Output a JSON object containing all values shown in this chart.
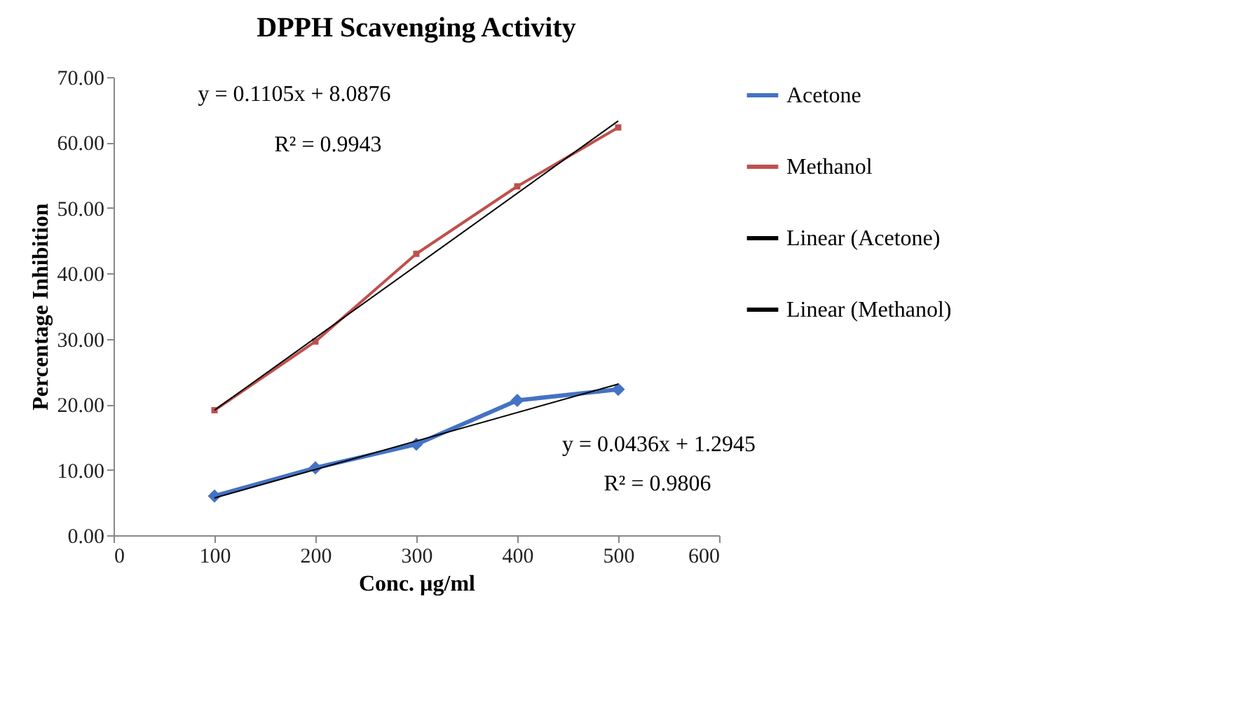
{
  "chart_data": {
    "type": "line",
    "title": "DPPH Scavenging Activity",
    "xlabel": "Conc. µg/ml",
    "ylabel": "Percentage Inhibition",
    "xlim": [
      0,
      600
    ],
    "xticks": [
      0,
      100,
      200,
      300,
      400,
      500,
      600
    ],
    "ylim": [
      0,
      70
    ],
    "yticks": [
      {
        "value": 0,
        "label": "0.00"
      },
      {
        "value": 10,
        "label": "10.00"
      },
      {
        "value": 20,
        "label": "20.00"
      },
      {
        "value": 30,
        "label": "30.00"
      },
      {
        "value": 40,
        "label": "40.00"
      },
      {
        "value": 50,
        "label": "50.00"
      },
      {
        "value": 60,
        "label": "60.00"
      },
      {
        "value": 70,
        "label": "70.00"
      }
    ],
    "legend": "right",
    "line_style": "solid",
    "series": [
      {
        "name": "Acetone",
        "color": "#4472c4",
        "marker": "diamond",
        "x": [
          100,
          200,
          300,
          400,
          500
        ],
        "values": [
          6.0,
          10.3,
          13.9,
          20.6,
          22.3
        ]
      },
      {
        "name": "Methanol",
        "color": "#c0504d",
        "marker": "square",
        "x": [
          100,
          200,
          300,
          400,
          500
        ],
        "values": [
          19.1,
          29.6,
          43.0,
          53.3,
          62.3
        ]
      },
      {
        "name": "Linear (Acetone)",
        "type": "line",
        "color": "#000000",
        "marker": "none",
        "x": [
          100,
          500
        ],
        "values": [
          5.7,
          23.1
        ]
      },
      {
        "name": "Linear (Methanol)",
        "type": "line",
        "color": "#000000",
        "marker": "none",
        "x": [
          100,
          500
        ],
        "values": [
          19.1,
          63.3
        ]
      }
    ],
    "annotations": [
      "y = 0.1105x + 8.0876",
      "R² = 0.9943",
      "y = 0.0436x + 1.2945",
      "R² = 0.9806"
    ]
  }
}
